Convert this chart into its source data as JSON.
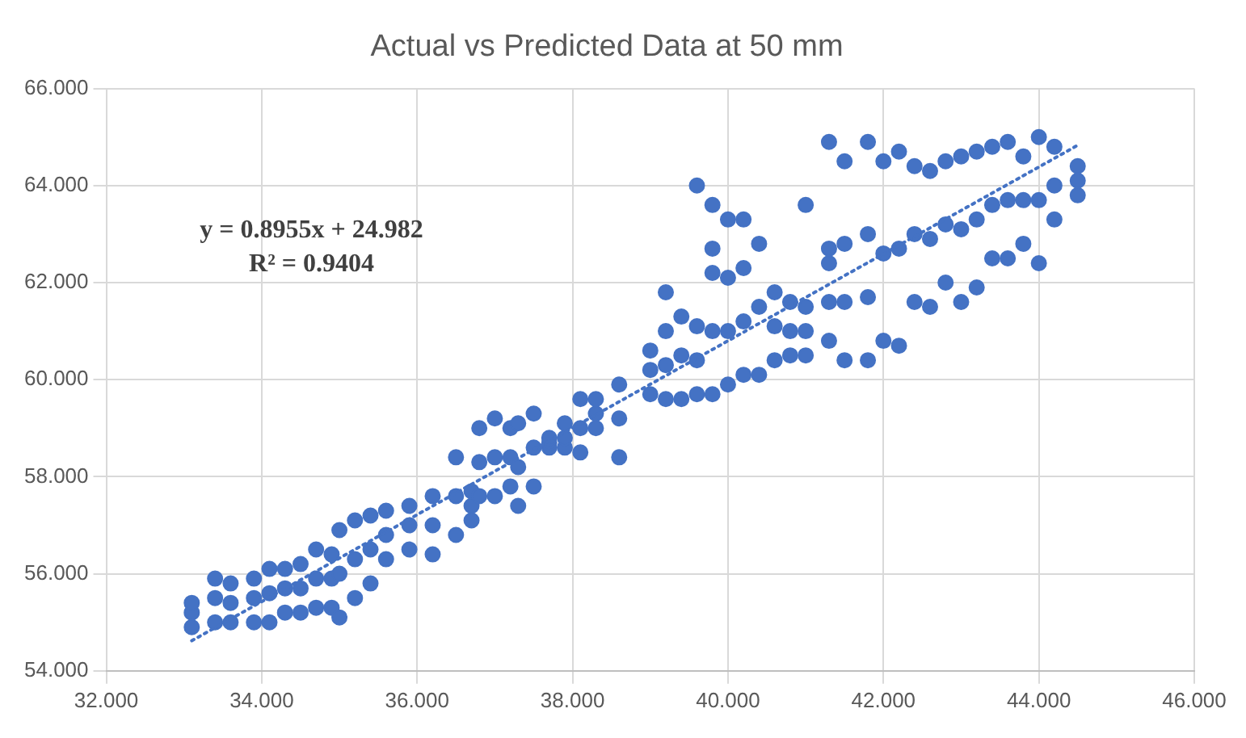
{
  "chart_data": {
    "type": "scatter",
    "title": "Actual vs Predicted Data at 50 mm",
    "xlim": [
      32,
      46
    ],
    "xticks": [
      {
        "value": 32,
        "label": "32.000"
      },
      {
        "value": 34,
        "label": "34.000"
      },
      {
        "value": 36,
        "label": "36.000"
      },
      {
        "value": 38,
        "label": "38.000"
      },
      {
        "value": 40,
        "label": "40.000"
      },
      {
        "value": 42,
        "label": "42.000"
      },
      {
        "value": 44,
        "label": "44.000"
      },
      {
        "value": 46,
        "label": "46.000"
      }
    ],
    "ylim": [
      54,
      66
    ],
    "yticks": [
      {
        "value": 54,
        "label": "54.000"
      },
      {
        "value": 56,
        "label": "56.000"
      },
      {
        "value": 58,
        "label": "58.000"
      },
      {
        "value": 60,
        "label": "60.000"
      },
      {
        "value": 62,
        "label": "62.000"
      },
      {
        "value": 64,
        "label": "64.000"
      },
      {
        "value": 66,
        "label": "66.000"
      }
    ],
    "grid": true,
    "legend": false,
    "marker": "circle",
    "annotations": [
      "y = 0.8955x + 24.982",
      "R² = 0.9404"
    ],
    "series": [
      {
        "type": "scatter",
        "color": "#4472c4",
        "x": [
          33.1,
          33.1,
          33.1,
          33.4,
          33.4,
          33.4,
          33.6,
          33.6,
          33.6,
          33.9,
          33.9,
          33.9,
          34.1,
          34.1,
          34.1,
          34.3,
          34.3,
          34.3,
          34.5,
          34.5,
          34.5,
          34.7,
          34.7,
          34.7,
          34.9,
          34.9,
          34.9,
          35.0,
          35.0,
          35.0,
          35.2,
          35.2,
          35.2,
          35.4,
          35.4,
          35.4,
          35.6,
          35.6,
          35.6,
          35.9,
          35.9,
          35.9,
          36.2,
          36.2,
          36.2,
          36.5,
          36.5,
          36.5,
          36.7,
          36.7,
          36.7,
          36.8,
          36.8,
          36.8,
          37.0,
          37.0,
          37.0,
          37.2,
          37.2,
          37.2,
          37.3,
          37.3,
          37.3,
          37.5,
          37.5,
          37.5,
          37.7,
          37.7,
          37.7,
          37.9,
          37.9,
          37.9,
          38.1,
          38.1,
          38.1,
          38.3,
          38.3,
          38.3,
          38.6,
          38.6,
          38.6,
          39.0,
          39.0,
          39.0,
          39.2,
          39.2,
          39.2,
          39.2,
          39.4,
          39.4,
          39.4,
          39.6,
          39.6,
          39.6,
          39.6,
          39.8,
          39.8,
          39.8,
          39.8,
          39.8,
          40.0,
          40.0,
          40.0,
          40.0,
          40.2,
          40.2,
          40.2,
          40.2,
          40.4,
          40.4,
          40.4,
          40.6,
          40.6,
          40.6,
          40.8,
          40.8,
          40.8,
          41.0,
          41.0,
          41.0,
          41.0,
          41.3,
          41.3,
          41.3,
          41.3,
          41.3,
          41.5,
          41.5,
          41.5,
          41.5,
          41.8,
          41.8,
          41.8,
          41.8,
          42.0,
          42.0,
          42.0,
          42.2,
          42.2,
          42.2,
          42.4,
          42.4,
          42.4,
          42.6,
          42.6,
          42.6,
          42.8,
          42.8,
          42.8,
          43.0,
          43.0,
          43.0,
          43.2,
          43.2,
          43.2,
          43.4,
          43.4,
          43.4,
          43.6,
          43.6,
          43.6,
          43.8,
          43.8,
          43.8,
          44.0,
          44.0,
          44.0,
          44.2,
          44.2,
          44.2,
          44.5,
          44.5,
          44.5
        ],
        "values": [
          54.9,
          55.2,
          55.4,
          55.0,
          55.5,
          55.9,
          55.0,
          55.4,
          55.8,
          55.0,
          55.5,
          55.9,
          55.0,
          55.6,
          56.1,
          55.2,
          55.7,
          56.1,
          55.2,
          55.7,
          56.2,
          55.3,
          55.9,
          56.5,
          55.3,
          55.9,
          56.4,
          55.1,
          56.0,
          56.9,
          55.5,
          56.3,
          57.1,
          55.8,
          56.5,
          57.2,
          56.3,
          56.8,
          57.3,
          56.5,
          57.0,
          57.4,
          56.4,
          57.0,
          57.6,
          56.8,
          57.6,
          58.4,
          57.1,
          57.4,
          57.7,
          57.6,
          58.3,
          59.0,
          57.6,
          58.4,
          59.2,
          57.8,
          58.4,
          59.0,
          57.4,
          58.2,
          59.1,
          57.8,
          58.6,
          59.3,
          58.6,
          58.7,
          58.8,
          58.6,
          58.8,
          59.1,
          58.5,
          59.0,
          59.6,
          59.0,
          59.3,
          59.6,
          58.4,
          59.2,
          59.9,
          59.7,
          60.2,
          60.6,
          59.6,
          60.3,
          61.0,
          61.8,
          59.6,
          60.5,
          61.3,
          59.7,
          60.4,
          61.1,
          64.0,
          59.7,
          61.0,
          62.2,
          62.7,
          63.6,
          59.9,
          61.0,
          62.1,
          63.3,
          60.1,
          61.2,
          62.3,
          63.3,
          60.1,
          61.5,
          62.8,
          60.4,
          61.1,
          61.8,
          60.5,
          61.0,
          61.6,
          60.5,
          61.0,
          61.5,
          63.6,
          60.8,
          61.6,
          62.4,
          62.7,
          64.9,
          60.4,
          61.6,
          62.8,
          64.5,
          60.4,
          61.7,
          63.0,
          64.9,
          60.8,
          62.6,
          64.5,
          60.7,
          62.7,
          64.7,
          61.6,
          63.0,
          64.4,
          61.5,
          62.9,
          64.3,
          62.0,
          63.2,
          64.5,
          61.6,
          63.1,
          64.6,
          61.9,
          63.3,
          64.7,
          62.5,
          63.6,
          64.8,
          62.5,
          63.7,
          64.9,
          62.8,
          63.7,
          64.6,
          62.4,
          63.7,
          65.0,
          63.3,
          64.0,
          64.8,
          63.8,
          64.1,
          64.4
        ]
      },
      {
        "type": "line",
        "color": "#4472c4",
        "line_style": "dotted",
        "marker": "none",
        "x": [
          33.1,
          44.5
        ],
        "values": [
          54.62,
          64.83
        ]
      }
    ]
  }
}
